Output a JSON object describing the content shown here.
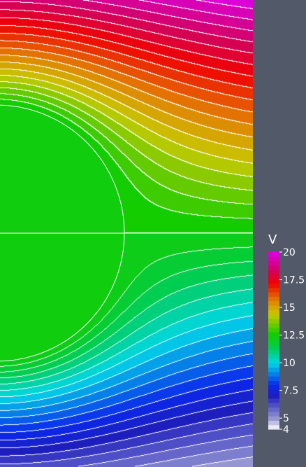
{
  "chart_data": {
    "type": "heatmap",
    "subtype": "filled-contour",
    "title": "",
    "xlabel": "",
    "ylabel": "",
    "colorbar": {
      "title": "V",
      "range": [
        4,
        20
      ],
      "ticks": [
        4,
        5,
        7.5,
        10,
        12.5,
        15,
        17.5,
        20
      ],
      "tick_labels": [
        "4",
        "5",
        "7.5",
        "10",
        "12.5",
        "15",
        "17.5",
        "20"
      ],
      "levels": [
        4,
        4.4,
        4.8,
        5.2,
        5.6,
        6,
        6.4,
        6.8,
        7.2,
        7.6,
        8,
        8.4,
        8.8,
        9.2,
        9.6,
        10,
        10.4,
        10.8,
        11.2,
        11.6,
        12,
        12.4,
        12.8,
        13.2,
        13.6,
        14,
        14.4,
        14.8,
        15.2,
        15.6,
        16,
        16.4,
        16.8,
        17.2,
        17.6,
        18,
        18.4,
        18.8,
        19.2,
        19.6,
        20
      ],
      "colormap": "rainbow (white → blue → cyan → green → yellow → red → magenta)"
    },
    "field": {
      "inclusion": "semicircular conductor at left edge held near 12 V",
      "contour_lines": "white",
      "background_panel_color": "#525a6a"
    }
  }
}
